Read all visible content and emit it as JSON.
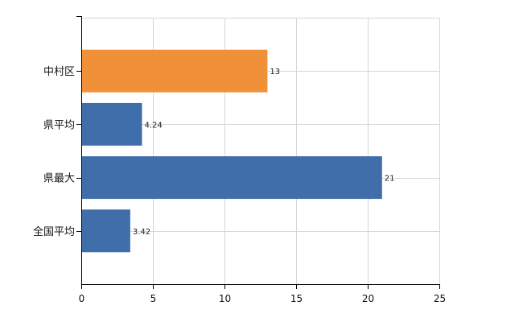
{
  "chart_data": {
    "type": "bar",
    "orientation": "horizontal",
    "categories": [
      "中村区",
      "県平均",
      "県最大",
      "全国平均"
    ],
    "values": [
      13,
      4.24,
      21,
      3.42
    ],
    "value_labels": [
      "13",
      "4.24",
      "21",
      "3.42"
    ],
    "colors": [
      "#f0913a",
      "#3f6eaa",
      "#3f6eaa",
      "#3f6eaa"
    ],
    "xlim": [
      0,
      25
    ],
    "x_ticks": [
      0,
      5,
      10,
      15,
      20,
      25
    ],
    "x_tick_labels": [
      "0",
      "5",
      "10",
      "15",
      "20",
      "25"
    ],
    "grid": true,
    "title": "",
    "xlabel": "",
    "ylabel": ""
  }
}
